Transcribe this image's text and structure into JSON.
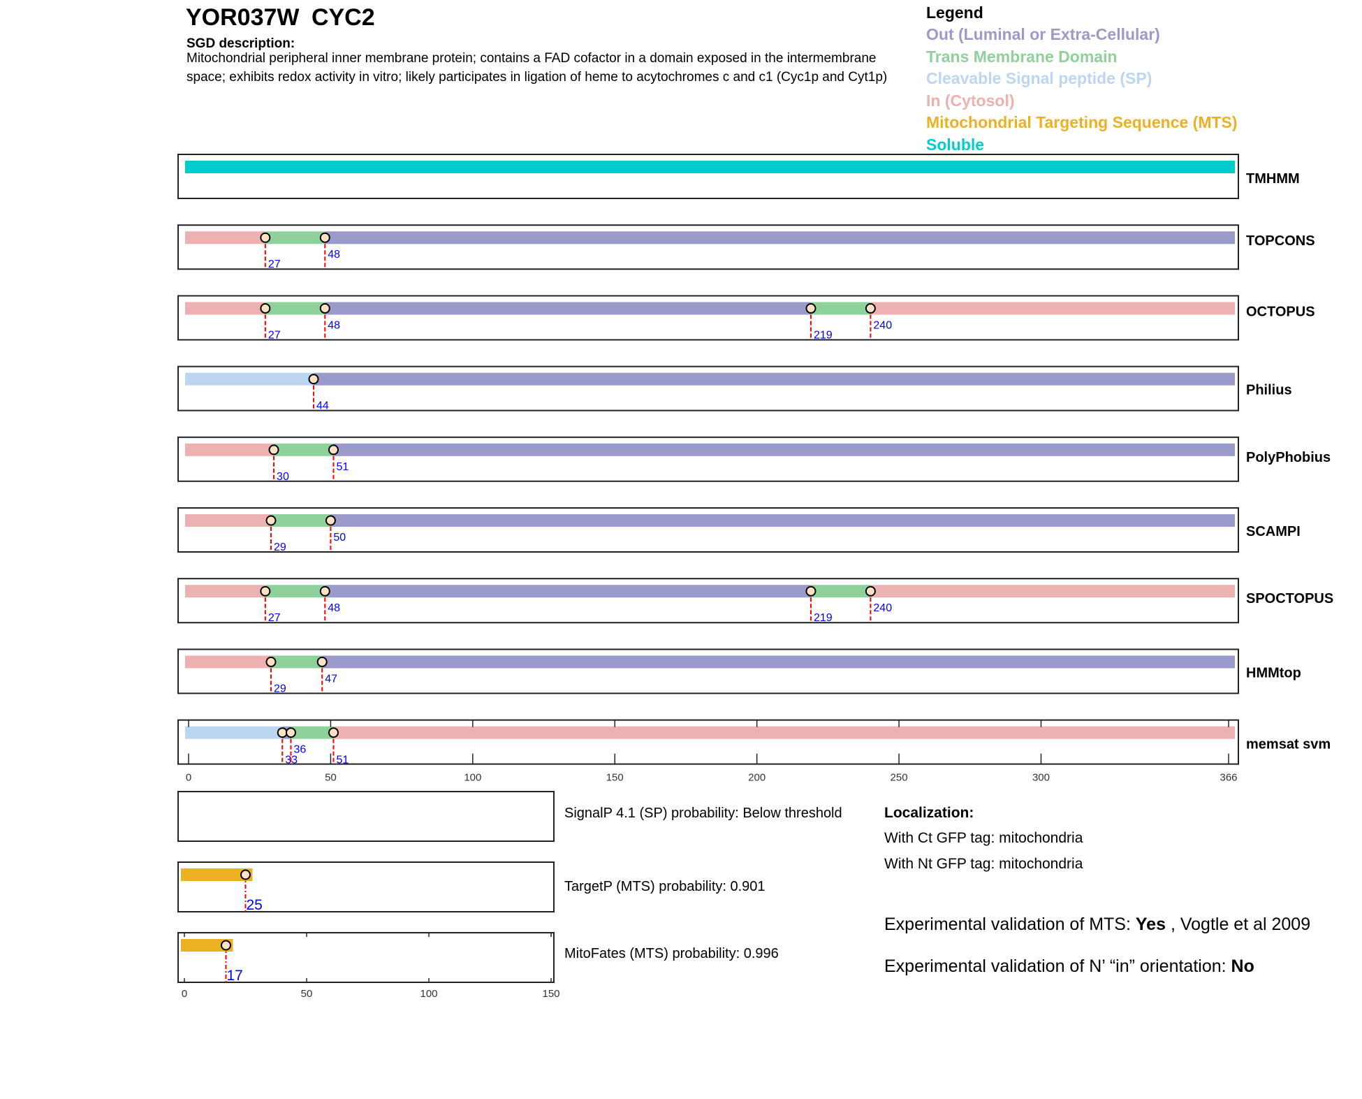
{
  "title": "YOR037W  CYC2",
  "sgd": {
    "heading": "SGD description:",
    "text": "Mitochondrial peripheral inner membrane protein; contains a FAD cofactor in a domain exposed in the intermembrane space; exhibits redox activity in vitro; likely participates in ligation of heme to acytochromes c and c1 (Cyc1p and Cyt1p)"
  },
  "legend": {
    "heading": "Legend",
    "items": [
      {
        "key": "out",
        "label": "Out (Luminal or Extra-Cellular)",
        "color": "#9a9acb"
      },
      {
        "key": "tm",
        "label": "Trans Membrane Domain",
        "color": "#8fd19a"
      },
      {
        "key": "sp",
        "label": "Cleavable Signal peptide (SP)",
        "color": "#bcd6f2"
      },
      {
        "key": "in",
        "label": "In (Cytosol)",
        "color": "#edb1b1"
      },
      {
        "key": "mts",
        "label": "Mitochondrial Targeting Sequence (MTS)",
        "color": "#ecb023"
      },
      {
        "key": "sol",
        "label": "Soluble",
        "color": "#00cccc"
      }
    ]
  },
  "sequence_length": 366,
  "tracks": [
    {
      "name": "TMHMM",
      "segments": [
        [
          "sol",
          0,
          366
        ]
      ],
      "markers": []
    },
    {
      "name": "TOPCONS",
      "segments": [
        [
          "in",
          0,
          27
        ],
        [
          "tm",
          27,
          48
        ],
        [
          "out",
          48,
          366
        ]
      ],
      "markers": [
        27,
        48
      ]
    },
    {
      "name": "OCTOPUS",
      "segments": [
        [
          "in",
          0,
          27
        ],
        [
          "tm",
          27,
          48
        ],
        [
          "out",
          48,
          219
        ],
        [
          "tm",
          219,
          240
        ],
        [
          "in",
          240,
          366
        ]
      ],
      "markers": [
        27,
        48,
        219,
        240
      ]
    },
    {
      "name": "Philius",
      "segments": [
        [
          "sp",
          0,
          44
        ],
        [
          "out",
          44,
          366
        ]
      ],
      "markers": [
        44
      ]
    },
    {
      "name": "PolyPhobius",
      "segments": [
        [
          "in",
          0,
          30
        ],
        [
          "tm",
          30,
          51
        ],
        [
          "out",
          51,
          366
        ]
      ],
      "markers": [
        30,
        51
      ]
    },
    {
      "name": "SCAMPI",
      "segments": [
        [
          "in",
          0,
          29
        ],
        [
          "tm",
          29,
          50
        ],
        [
          "out",
          50,
          366
        ]
      ],
      "markers": [
        29,
        50
      ]
    },
    {
      "name": "SPOCTOPUS",
      "segments": [
        [
          "in",
          0,
          27
        ],
        [
          "tm",
          27,
          48
        ],
        [
          "out",
          48,
          219
        ],
        [
          "tm",
          219,
          240
        ],
        [
          "in",
          240,
          366
        ]
      ],
      "markers": [
        27,
        48,
        219,
        240
      ]
    },
    {
      "name": "HMMtop",
      "segments": [
        [
          "in",
          0,
          29
        ],
        [
          "tm",
          29,
          47
        ],
        [
          "out",
          47,
          366
        ]
      ],
      "markers": [
        29,
        47
      ]
    },
    {
      "name": "memsat svm",
      "segments": [
        [
          "sp",
          0,
          33
        ],
        [
          "out",
          33,
          36
        ],
        [
          "tm",
          36,
          51
        ],
        [
          "in",
          51,
          366
        ]
      ],
      "markers": [
        33,
        36,
        51
      ]
    }
  ],
  "main_axis_ticks": [
    0,
    50,
    100,
    150,
    200,
    250,
    300,
    366
  ],
  "mts_tracks": [
    {
      "text": "SignalP 4.1 (SP) probability: Below threshold",
      "marker": null
    },
    {
      "text": "TargetP (MTS) probability: 0.901",
      "marker": 25
    },
    {
      "text": "MitoFates (MTS) probability: 0.996",
      "marker": 17
    }
  ],
  "small_axis_ticks": [
    0,
    50,
    100,
    150
  ],
  "localization": {
    "heading": "Localization:",
    "ct": "With Ct GFP tag: mitochondria",
    "nt": "With Nt GFP tag: mitochondria"
  },
  "validation": {
    "mts_prefix": "Experimental validation of MTS: ",
    "mts_value": "Yes",
    "mts_ref": " , Vogtle et al 2009",
    "orient_prefix": "Experimental validation of N’ “in” orientation: ",
    "orient_value": "No"
  },
  "colors": {
    "marker_fill": "#fde3c4",
    "marker_line": "#ff0000",
    "marker_label": "#0000ff"
  }
}
